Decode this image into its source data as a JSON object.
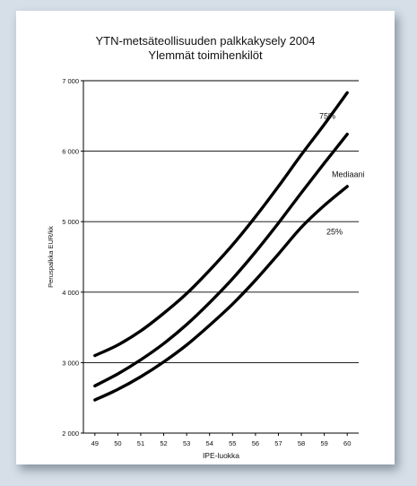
{
  "chart_data": {
    "type": "line",
    "title": "YTN-metsäteollisuuden palkkakysely 2004",
    "subtitle": "Ylemmät toimihenkilöt",
    "xlabel": "IPE-luokka",
    "ylabel": "Peruspalkka   EUR/kk",
    "x": [
      49,
      50,
      51,
      52,
      53,
      54,
      55,
      56,
      57,
      58,
      59,
      60
    ],
    "x_tick_labels": [
      "49",
      "50",
      "51",
      "52",
      "53",
      "54",
      "55",
      "56",
      "57",
      "58",
      "59",
      "60"
    ],
    "ylim": [
      2000,
      7000
    ],
    "y_ticks": [
      2000,
      3000,
      4000,
      5000,
      6000,
      7000
    ],
    "y_tick_labels": [
      "2 000",
      "3 000",
      "4 000",
      "5 000",
      "6 000",
      "7 000"
    ],
    "grid": "horizontal",
    "series": [
      {
        "name": "75%",
        "values": [
          3100,
          3250,
          3450,
          3700,
          3980,
          4310,
          4670,
          5070,
          5500,
          5950,
          6380,
          6830
        ]
      },
      {
        "name": "Mediaani",
        "values": [
          2670,
          2840,
          3040,
          3270,
          3540,
          3850,
          4190,
          4570,
          4980,
          5410,
          5830,
          6240
        ]
      },
      {
        "name": "25%",
        "values": [
          2470,
          2620,
          2800,
          3010,
          3250,
          3530,
          3830,
          4170,
          4540,
          4920,
          5230,
          5500
        ]
      }
    ]
  },
  "colors": {
    "line": "#000000",
    "grid": "#000000",
    "background": "#d6dfe8",
    "card": "#ffffff"
  }
}
